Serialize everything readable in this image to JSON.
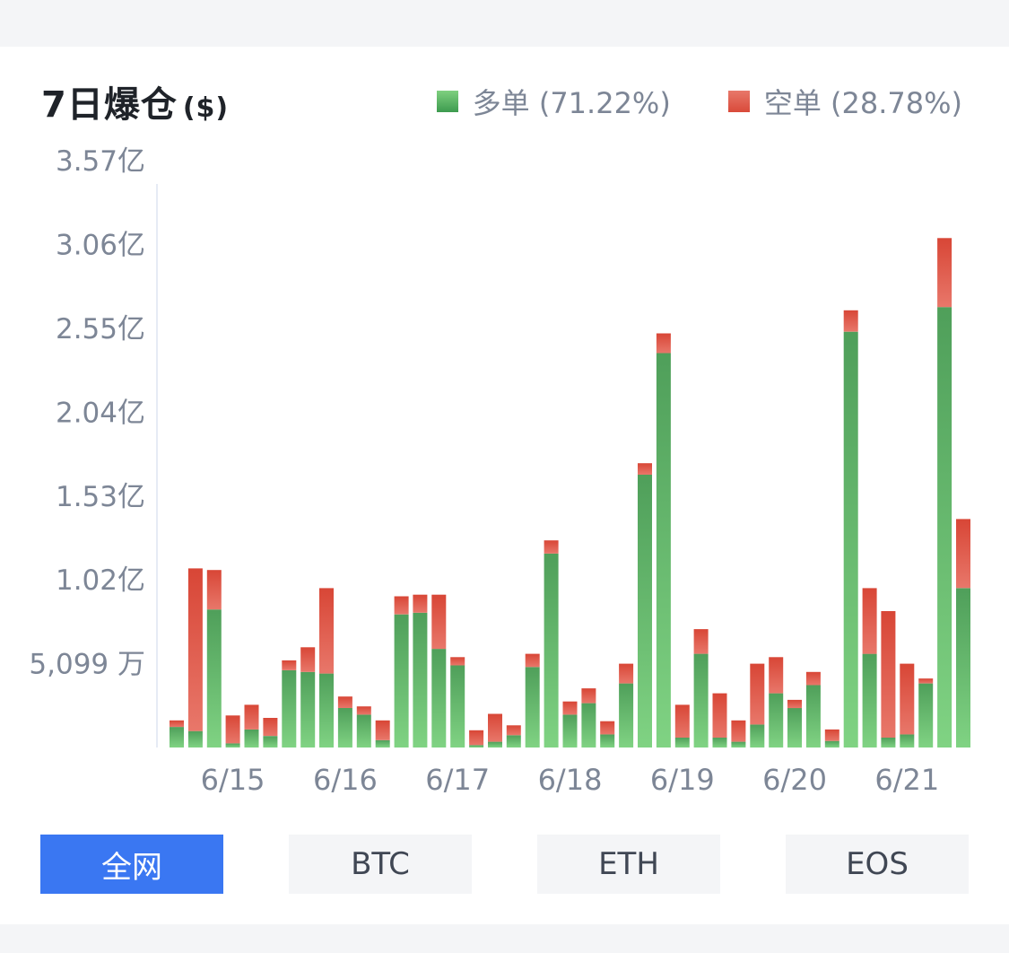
{
  "header": {
    "title": "7日爆仓",
    "unit": "($)"
  },
  "legend": [
    {
      "label": "多单 (71.22%)",
      "color": "#5aaf63"
    },
    {
      "label": "空单 (28.78%)",
      "color": "#df5545"
    }
  ],
  "tabs": [
    {
      "label": "全网",
      "active": true
    },
    {
      "label": "BTC",
      "active": false
    },
    {
      "label": "ETH",
      "active": false
    },
    {
      "label": "EOS",
      "active": false
    }
  ],
  "chart_data": {
    "type": "bar",
    "stacked": true,
    "y_ticks": [
      {
        "value": 50990000,
        "label": "5,099 万"
      },
      {
        "value": 102000000,
        "label": "1.02亿"
      },
      {
        "value": 153000000,
        "label": "1.53亿"
      },
      {
        "value": 204000000,
        "label": "2.04亿"
      },
      {
        "value": 255000000,
        "label": "2.55亿"
      },
      {
        "value": 306000000,
        "label": "3.06亿"
      },
      {
        "value": 357000000,
        "label": "3.57亿"
      }
    ],
    "x_labels": [
      {
        "bar_index": 3,
        "label": "6/15"
      },
      {
        "bar_index": 9,
        "label": "6/16"
      },
      {
        "bar_index": 15,
        "label": "6/17"
      },
      {
        "bar_index": 21,
        "label": "6/18"
      },
      {
        "bar_index": 27,
        "label": "6/19"
      },
      {
        "bar_index": 33,
        "label": "6/20"
      },
      {
        "bar_index": 39,
        "label": "6/21"
      }
    ],
    "ylim": [
      0,
      370000000
    ],
    "grid": false,
    "legend_position": "top-right",
    "series": [
      {
        "name": "多单",
        "color_top": "#5aaf63",
        "color_bottom": "#7fd07f",
        "values": [
          12500000,
          10000000,
          84000000,
          2500000,
          11000000,
          7000000,
          47000000,
          46000000,
          45000000,
          24000000,
          20000000,
          4500000,
          81000000,
          82000000,
          60000000,
          50000000,
          1500000,
          3500000,
          7500000,
          49000000,
          118000000,
          20000000,
          27000000,
          8000000,
          39000000,
          166000000,
          240000000,
          6000000,
          57000000,
          6000000,
          3500000,
          14000000,
          33000000,
          24000000,
          38000000,
          4000000,
          253000000,
          57000000,
          6000000,
          8000000,
          39000000,
          268000000,
          97000000
        ]
      },
      {
        "name": "空单",
        "color_top": "#d94a3a",
        "color_bottom": "#e8786a",
        "values": [
          4000000,
          99000000,
          24000000,
          17000000,
          15000000,
          11000000,
          6000000,
          15000000,
          52000000,
          7000000,
          5000000,
          12000000,
          11000000,
          11000000,
          33000000,
          5000000,
          9000000,
          17000000,
          6000000,
          8000000,
          8000000,
          8000000,
          9000000,
          8000000,
          12000000,
          7000000,
          12000000,
          20000000,
          15000000,
          27000000,
          13000000,
          37000000,
          22000000,
          5000000,
          8000000,
          7000000,
          13000000,
          40000000,
          77000000,
          43000000,
          3000000,
          42000000,
          42000000
        ]
      }
    ]
  }
}
